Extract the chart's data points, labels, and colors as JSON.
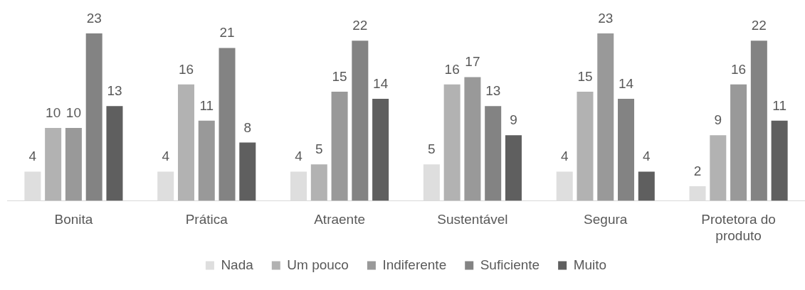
{
  "chart_data": {
    "type": "bar",
    "categories": [
      "Bonita",
      "Prática",
      "Atraente",
      "Sustentável",
      "Segura",
      "Protetora do produto"
    ],
    "series": [
      {
        "name": "Nada",
        "color": "#dedede",
        "values": [
          4,
          4,
          4,
          5,
          4,
          2
        ]
      },
      {
        "name": "Um pouco",
        "color": "#b2b2b2",
        "values": [
          10,
          16,
          5,
          16,
          15,
          9
        ]
      },
      {
        "name": "Indiferente",
        "color": "#999999",
        "values": [
          10,
          11,
          15,
          17,
          23,
          16
        ]
      },
      {
        "name": "Suficiente",
        "color": "#838383",
        "values": [
          23,
          21,
          22,
          13,
          14,
          22
        ]
      },
      {
        "name": "Muito",
        "color": "#5f5f5f",
        "values": [
          13,
          8,
          14,
          9,
          4,
          11
        ]
      }
    ],
    "data_labels": true,
    "grid": false,
    "legend": "bottom"
  }
}
